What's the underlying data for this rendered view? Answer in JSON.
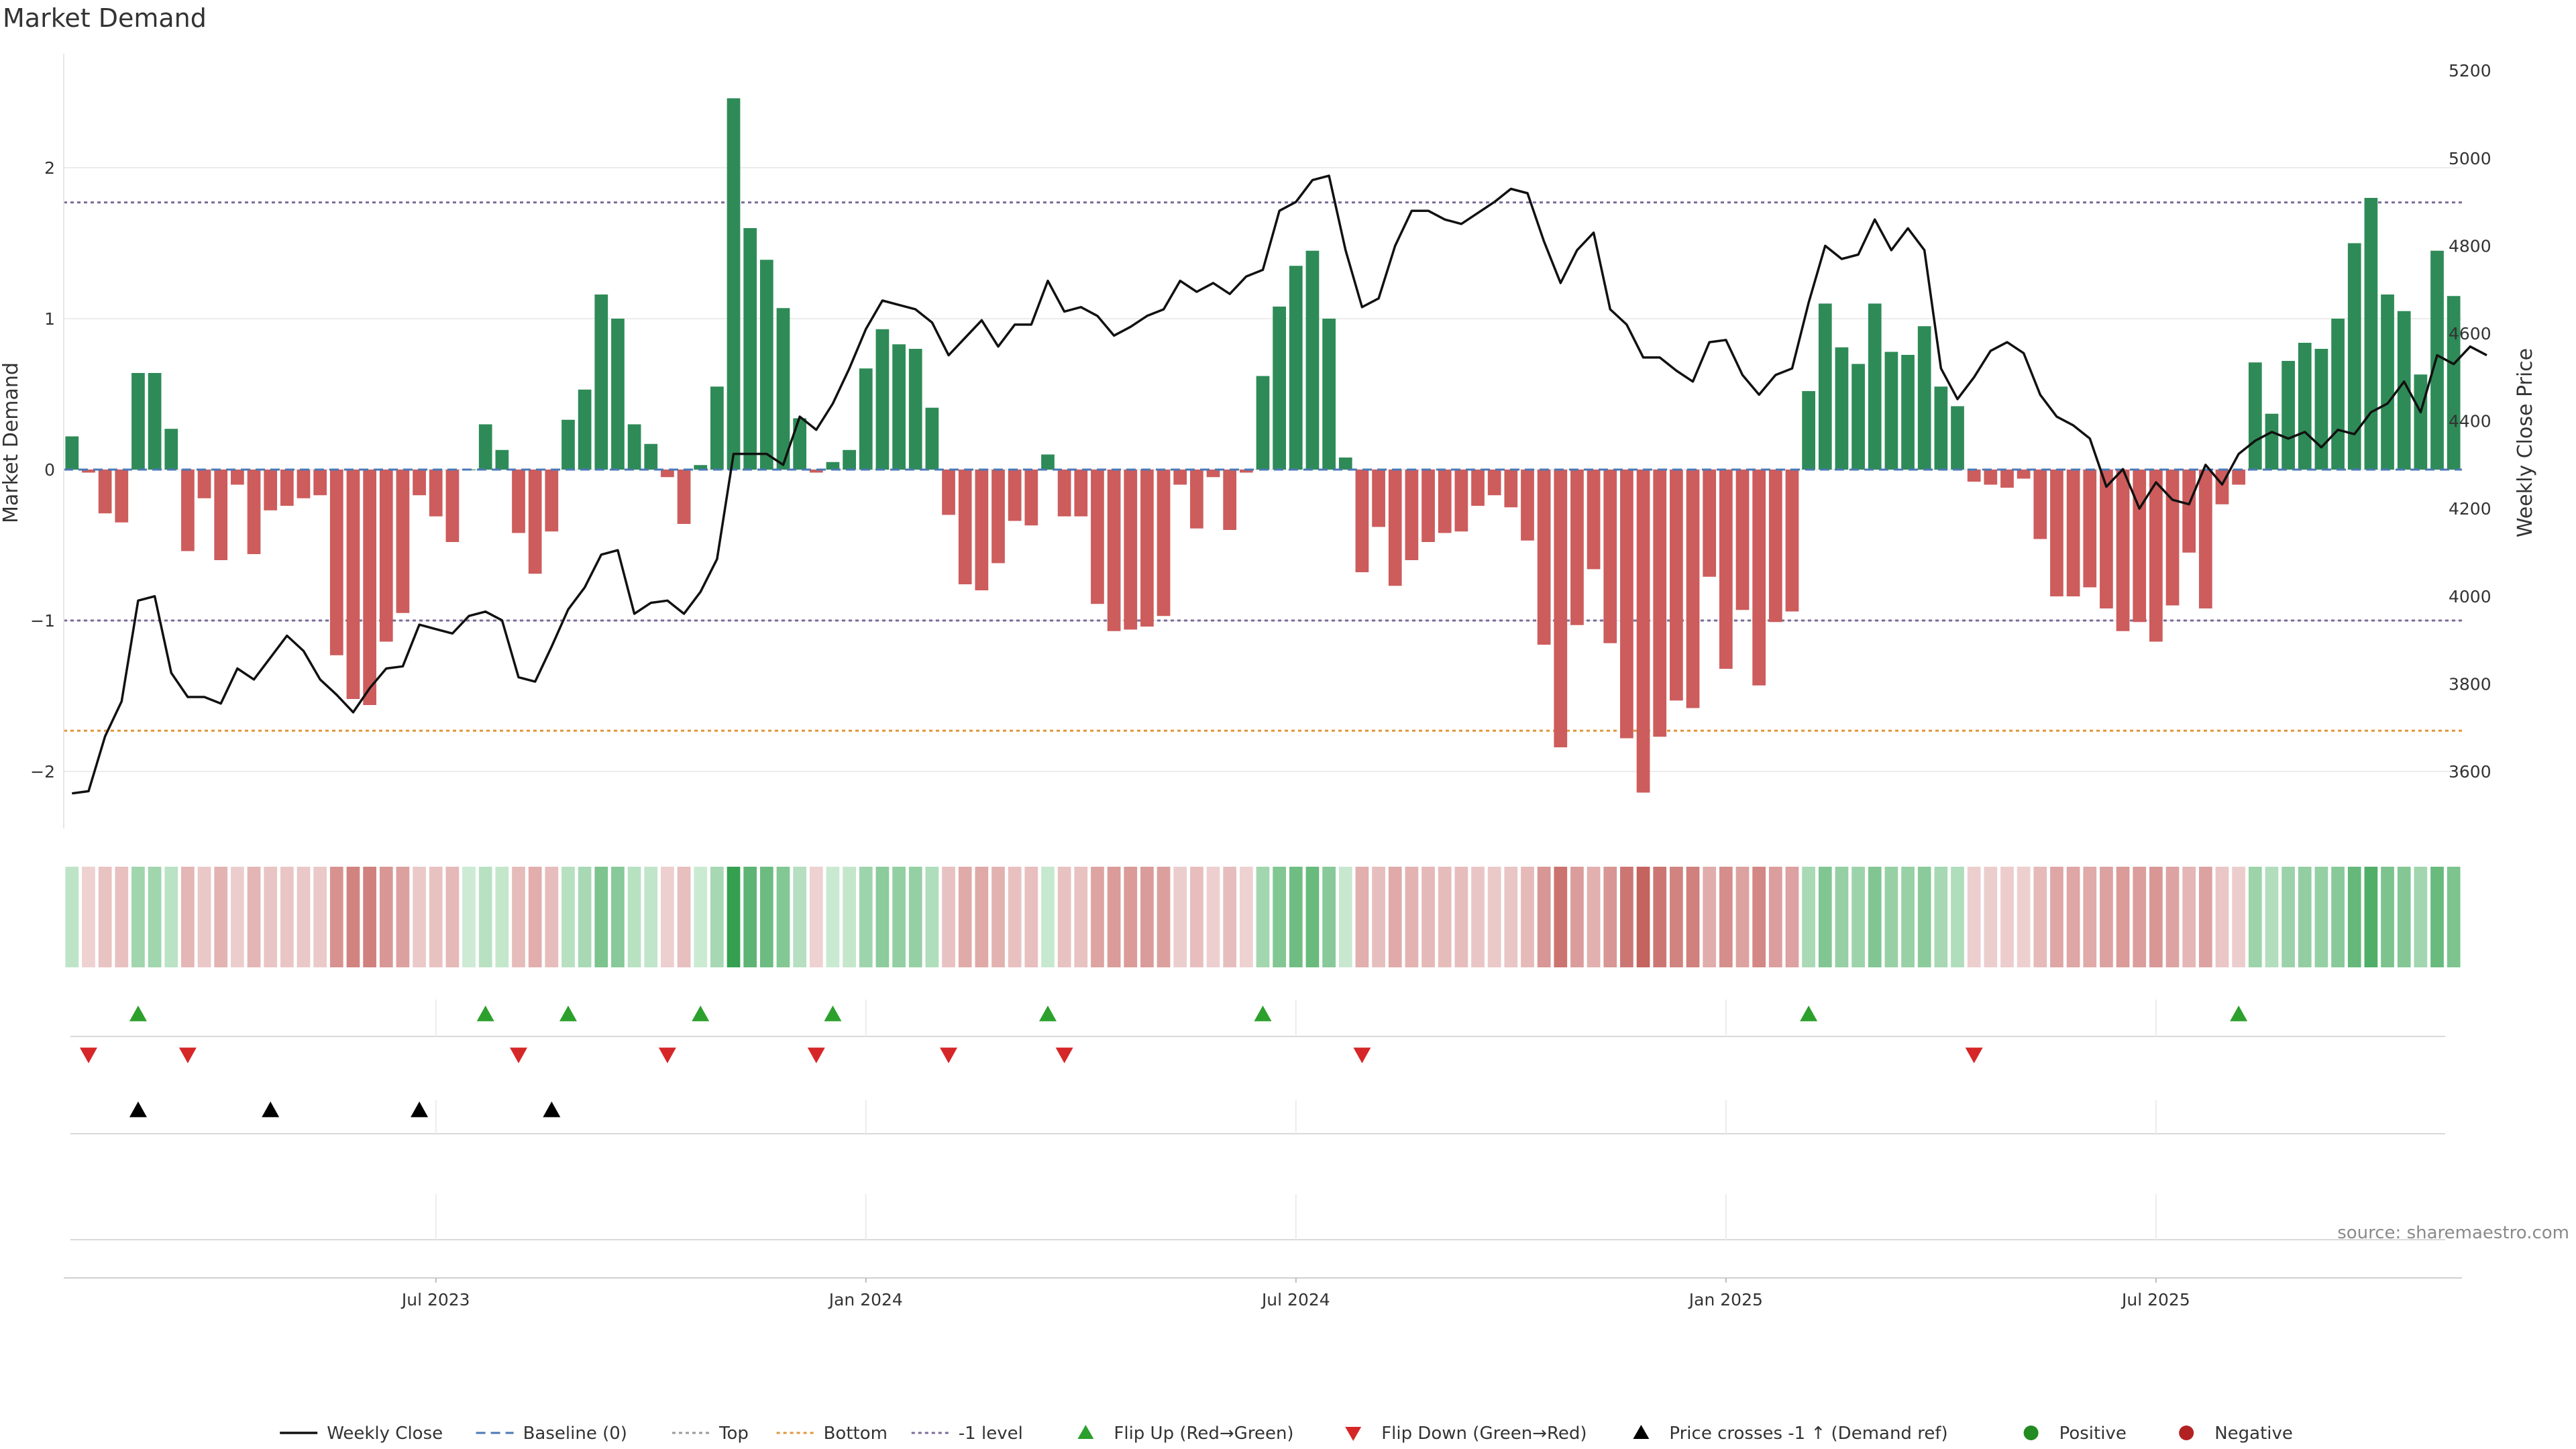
{
  "chart_data": {
    "type": "bar",
    "title": "Market Demand",
    "ylabel": "Market Demand",
    "y2label": "Weekly Close Price",
    "ylim": [
      -2.4,
      2.75
    ],
    "y2lim": [
      3400,
      5260
    ],
    "y_ticks": [
      -2,
      -1,
      0,
      1,
      2
    ],
    "y_tick_labels": [
      "−2",
      "−1",
      "0",
      "1",
      "2"
    ],
    "y2_ticks": [
      3600,
      3800,
      4000,
      4200,
      4400,
      4600,
      4800,
      5000,
      5200
    ],
    "x_ticks": [
      {
        "index": 22,
        "label": "Jul 2023"
      },
      {
        "index": 48,
        "label": "Jan 2024"
      },
      {
        "index": 74,
        "label": "Jul 2024"
      },
      {
        "index": 100,
        "label": "Jan 2025"
      },
      {
        "index": 126,
        "label": "Jul 2025"
      }
    ],
    "reference_lines": {
      "top": 1.77,
      "bottom": -1.73,
      "minus_one": -1.0,
      "baseline": 0
    },
    "demand": [
      0.22,
      -0.02,
      -0.29,
      -0.35,
      0.64,
      0.64,
      0.27,
      -0.54,
      -0.19,
      -0.6,
      -0.1,
      -0.56,
      -0.27,
      -0.24,
      -0.19,
      -0.17,
      -1.23,
      -1.52,
      -1.56,
      -1.14,
      -0.95,
      -0.17,
      -0.31,
      -0.48,
      0,
      0.3,
      0.13,
      -0.42,
      -0.69,
      -0.41,
      0.33,
      0.53,
      1.16,
      1.0,
      0.3,
      0.17,
      -0.05,
      -0.36,
      0.03,
      0.55,
      2.46,
      1.6,
      1.39,
      1.07,
      0.34,
      -0.02,
      0.05,
      0.13,
      0.67,
      0.93,
      0.83,
      0.8,
      0.41,
      -0.3,
      -0.76,
      -0.8,
      -0.62,
      -0.34,
      -0.37,
      0.1,
      -0.31,
      -0.31,
      -0.89,
      -1.07,
      -1.06,
      -1.04,
      -0.97,
      -0.1,
      -0.39,
      -0.05,
      -0.4,
      -0.02,
      0.62,
      1.08,
      1.35,
      1.45,
      1.0,
      0.08,
      -0.68,
      -0.38,
      -0.77,
      -0.6,
      -0.48,
      -0.42,
      -0.41,
      -0.24,
      -0.17,
      -0.25,
      -0.47,
      -1.16,
      -1.84,
      -1.03,
      -0.66,
      -1.15,
      -1.78,
      -2.14,
      -1.77,
      -1.53,
      -1.58,
      -0.71,
      -1.32,
      -0.93,
      -1.43,
      -1.01,
      -0.94,
      0.52,
      1.1,
      0.81,
      0.7,
      1.1,
      0.78,
      0.76,
      0.95,
      0.55,
      0.42,
      -0.08,
      -0.1,
      -0.12,
      -0.06,
      -0.46,
      -0.84,
      -0.84,
      -0.78,
      -0.92,
      -1.07,
      -1.01,
      -1.14,
      -0.9,
      -0.55,
      -0.92,
      -0.23,
      -0.1,
      0.71,
      0.37,
      0.72,
      0.84,
      0.8,
      1.0,
      1.5,
      1.8,
      1.16,
      1.05,
      0.63,
      1.45,
      1.15
    ],
    "close": [
      3550,
      3555,
      3680,
      3760,
      3990,
      4000,
      3825,
      3770,
      3770,
      3755,
      3835,
      3810,
      3860,
      3910,
      3875,
      3810,
      3775,
      3735,
      3790,
      3835,
      3840,
      3935,
      3925,
      3915,
      3955,
      3965,
      3945,
      3815,
      3805,
      3885,
      3970,
      4020,
      4095,
      4105,
      3960,
      3985,
      3990,
      3960,
      4010,
      4085,
      4325,
      4325,
      4325,
      4300,
      4410,
      4380,
      4440,
      4520,
      4610,
      4675,
      4665,
      4655,
      4625,
      4550,
      4590,
      4630,
      4570,
      4620,
      4620,
      4720,
      4650,
      4660,
      4640,
      4595,
      4615,
      4640,
      4655,
      4720,
      4695,
      4715,
      4690,
      4730,
      4745,
      4880,
      4900,
      4950,
      4960,
      4790,
      4660,
      4680,
      4800,
      4880,
      4880,
      4860,
      4850,
      4875,
      4900,
      4930,
      4920,
      4810,
      4715,
      4790,
      4830,
      4655,
      4620,
      4545,
      4545,
      4515,
      4490,
      4580,
      4585,
      4505,
      4460,
      4505,
      4520,
      4670,
      4800,
      4770,
      4780,
      4860,
      4790,
      4840,
      4790,
      4520,
      4450,
      4500,
      4560,
      4580,
      4555,
      4460,
      4410,
      4390,
      4360,
      4250,
      4290,
      4200,
      4260,
      4220,
      4210,
      4300,
      4255,
      4325,
      4355,
      4375,
      4360,
      4375,
      4340,
      4380,
      4370,
      4420,
      4440,
      4490,
      4420,
      4550,
      4530,
      4570,
      4550
    ]
  },
  "flip_up_indices": [
    4,
    25,
    30,
    38,
    46,
    59,
    72,
    105,
    131
  ],
  "flip_down_indices": [
    1,
    7,
    27,
    36,
    45,
    53,
    60,
    78,
    115
  ],
  "price_cross_indices": [
    4,
    12,
    21,
    29
  ],
  "source": "source: sharemaestro.com",
  "legend": [
    {
      "label": "Weekly Close",
      "icon": "line-solid-black"
    },
    {
      "label": "Baseline (0)",
      "icon": "line-dashed-blue"
    },
    {
      "label": "Top",
      "icon": "line-dotted-gray"
    },
    {
      "label": "Bottom",
      "icon": "line-dotted-orange"
    },
    {
      "label": "-1 level",
      "icon": "line-dotted-purple"
    },
    {
      "label": "Flip Up (Red→Green)",
      "icon": "triangle-up-green"
    },
    {
      "label": "Flip Down (Green→Red)",
      "icon": "triangle-down-red"
    },
    {
      "label": "Price crosses -1 ↑ (Demand ref)",
      "icon": "triangle-up-black"
    },
    {
      "label": "Positive",
      "icon": "dot-green"
    },
    {
      "label": "Negative",
      "icon": "dot-red"
    }
  ],
  "colors": {
    "positive": "#2e8b57",
    "negative": "#cd5c5c",
    "close_line": "#111111",
    "baseline": "#4a78b5",
    "top_line": "#7a6a9a",
    "bottom_line": "#e0963a",
    "minus_one_line": "#7a6a9a",
    "flip_up": "#2ca02c",
    "flip_down": "#d62728",
    "cross": "#000000",
    "dot_positive": "#228b22",
    "dot_negative": "#b22222"
  }
}
